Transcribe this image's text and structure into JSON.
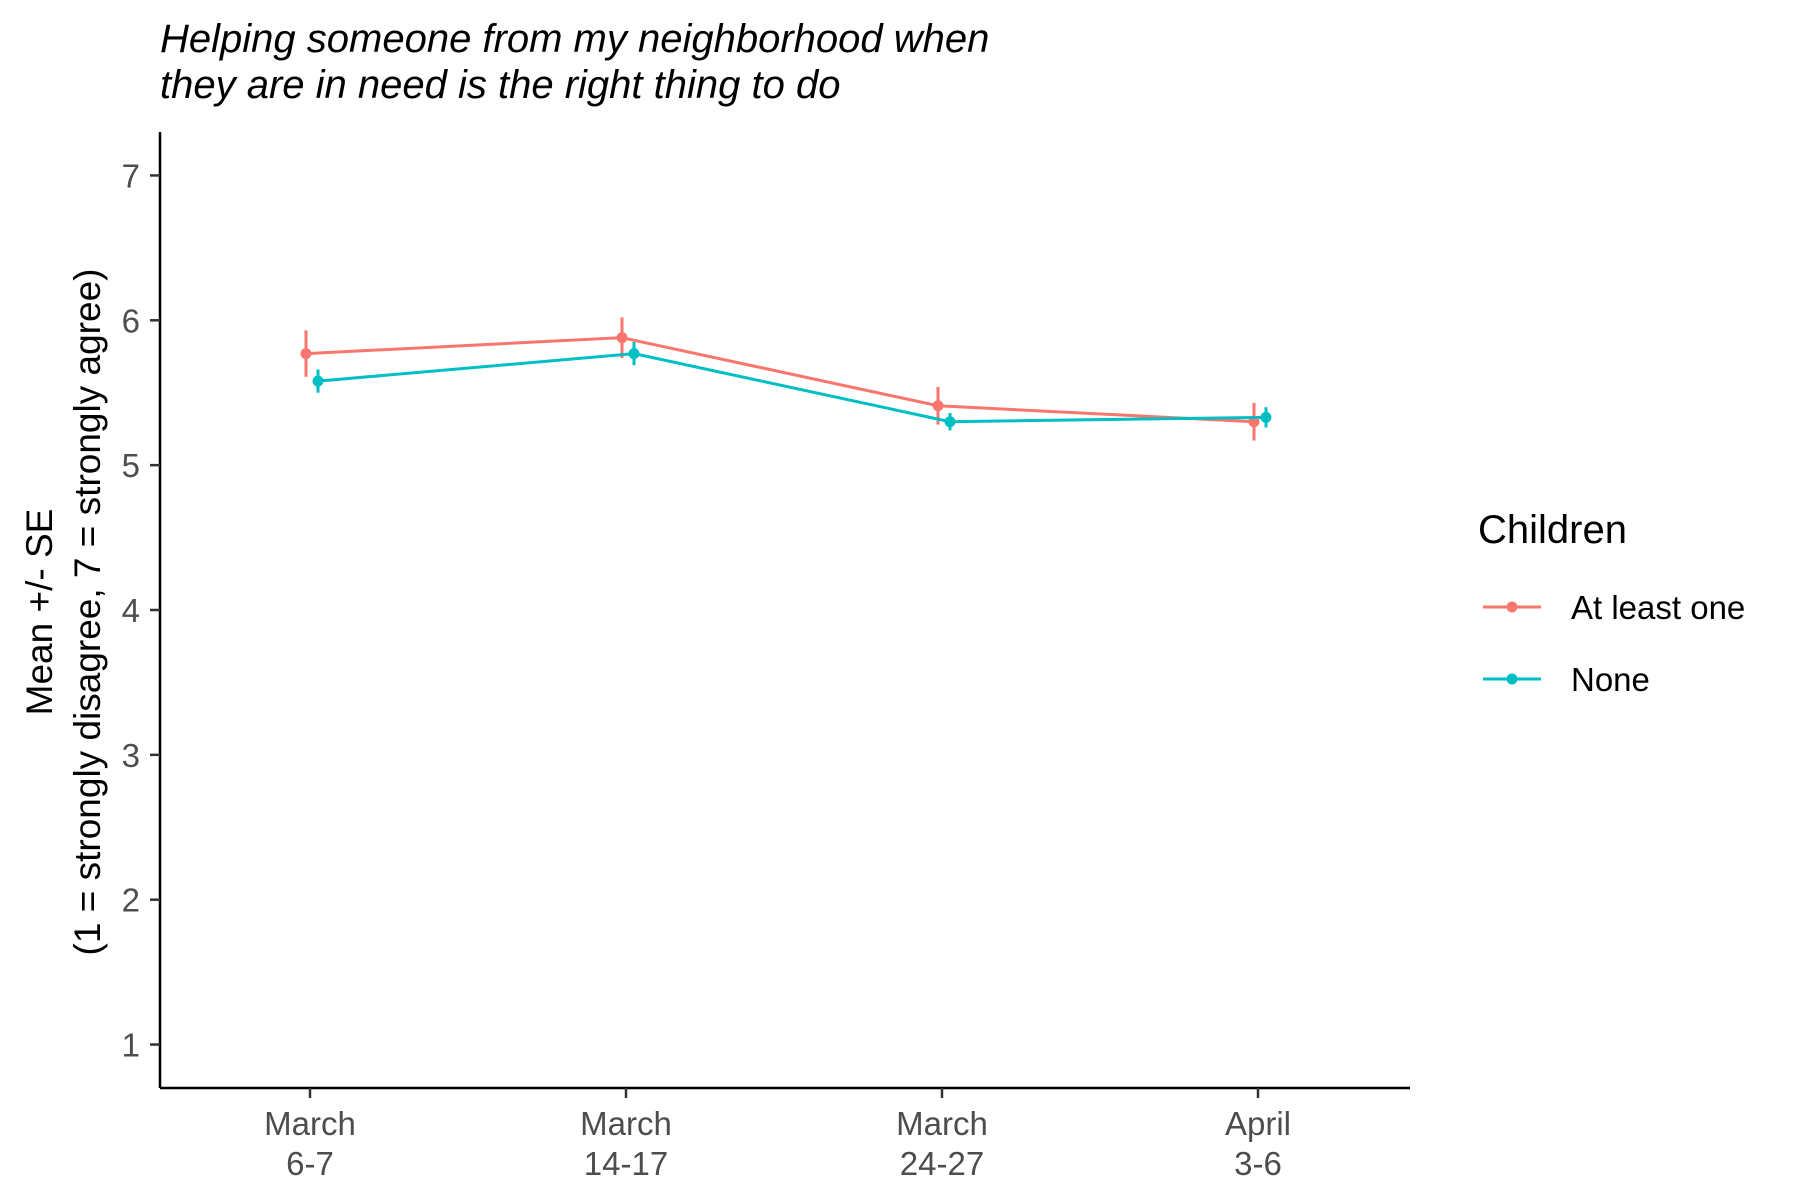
{
  "chart_data": {
    "type": "line",
    "title_lines": [
      "Helping someone from my neighborhood when",
      "they are in need is the right thing to do"
    ],
    "ylabel_lines": [
      "Mean +/- SE",
      "(1 = strongly disagree, 7 = strongly agree)"
    ],
    "xlabel": "",
    "categories": [
      [
        "March",
        "6-7"
      ],
      [
        "March",
        "14-17"
      ],
      [
        "March",
        "24-27"
      ],
      [
        "April",
        "3-6"
      ]
    ],
    "ylim": [
      0.7,
      7.3
    ],
    "yticks": [
      1,
      2,
      3,
      4,
      5,
      6,
      7
    ],
    "grid": false,
    "legend": {
      "title": "Children",
      "position": "right"
    },
    "series": [
      {
        "name": "At least one",
        "color": "#F8766D",
        "values": [
          5.77,
          5.88,
          5.41,
          5.3
        ],
        "se": [
          0.16,
          0.14,
          0.13,
          0.13
        ]
      },
      {
        "name": "None",
        "color": "#00BFC4",
        "values": [
          5.58,
          5.77,
          5.3,
          5.33
        ],
        "se": [
          0.08,
          0.08,
          0.06,
          0.07
        ]
      }
    ]
  }
}
